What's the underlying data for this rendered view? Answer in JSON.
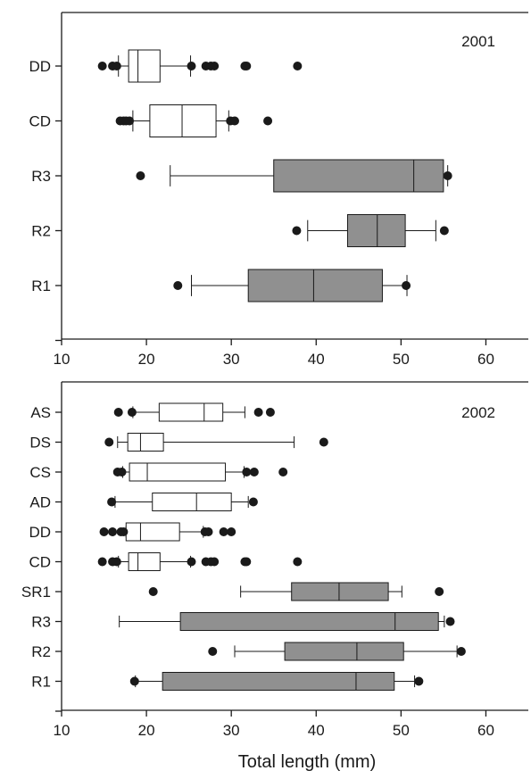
{
  "xlabel": "Total length (mm)",
  "colors": {
    "filled_box": "#909090",
    "open_box": "#ffffff",
    "stroke": "#1a1a1a"
  },
  "chart_data": [
    {
      "type": "boxplot",
      "orientation": "horizontal",
      "annotation": "2001",
      "xlim": [
        10,
        65
      ],
      "xticks": [
        "10",
        "20",
        "30",
        "40",
        "50",
        "60"
      ],
      "categories": [
        {
          "label": "DD",
          "filled": false,
          "whisker_low": 16.7,
          "q1": 17.9,
          "median": 19.0,
          "q3": 21.6,
          "whisker_high": 25.2,
          "outliers": [
            14.8,
            16.0,
            16.5,
            25.3,
            27.0,
            27.6,
            28.0,
            31.6,
            31.8,
            37.8
          ]
        },
        {
          "label": "CD",
          "filled": false,
          "whisker_low": 18.4,
          "q1": 20.4,
          "median": 24.2,
          "q3": 28.2,
          "whisker_high": 29.7,
          "outliers": [
            16.9,
            17.3,
            17.6,
            18.0,
            29.9,
            30.4,
            34.3
          ]
        },
        {
          "label": "R3",
          "filled": true,
          "whisker_low": 22.8,
          "q1": 35.0,
          "median": 51.5,
          "q3": 55.0,
          "whisker_high": 55.5,
          "outliers": [
            19.3,
            55.5
          ]
        },
        {
          "label": "R2",
          "filled": true,
          "whisker_low": 39.0,
          "q1": 43.7,
          "median": 47.2,
          "q3": 50.5,
          "whisker_high": 54.1,
          "outliers": [
            37.7,
            55.1
          ]
        },
        {
          "label": "R1",
          "filled": true,
          "whisker_low": 25.3,
          "q1": 32.0,
          "median": 39.7,
          "q3": 47.8,
          "whisker_high": 50.7,
          "outliers": [
            23.7,
            50.6
          ]
        }
      ]
    },
    {
      "type": "boxplot",
      "orientation": "horizontal",
      "annotation": "2002",
      "xlim": [
        10,
        65
      ],
      "xticks": [
        "10",
        "20",
        "30",
        "40",
        "50",
        "60"
      ],
      "categories": [
        {
          "label": "AS",
          "filled": false,
          "whisker_low": 18.4,
          "q1": 21.5,
          "median": 26.8,
          "q3": 29.0,
          "whisker_high": 31.6,
          "outliers": [
            16.7,
            18.3,
            33.2,
            34.6
          ]
        },
        {
          "label": "DS",
          "filled": false,
          "whisker_low": 16.6,
          "q1": 17.8,
          "median": 19.3,
          "q3": 22.0,
          "whisker_high": 37.4,
          "outliers": [
            15.6,
            40.9
          ]
        },
        {
          "label": "CS",
          "filled": false,
          "whisker_low": 17.2,
          "q1": 18.0,
          "median": 20.1,
          "q3": 29.3,
          "whisker_high": 31.5,
          "outliers": [
            16.6,
            17.1,
            31.8,
            32.7,
            36.1
          ]
        },
        {
          "label": "AD",
          "filled": false,
          "whisker_low": 16.3,
          "q1": 20.7,
          "median": 25.9,
          "q3": 30.0,
          "whisker_high": 32.0,
          "outliers": [
            15.9,
            32.6
          ]
        },
        {
          "label": "DD",
          "filled": false,
          "whisker_low": 17.6,
          "q1": 17.6,
          "median": 19.3,
          "q3": 23.9,
          "whisker_high": 26.7,
          "outliers": [
            15.0,
            16.0,
            17.0,
            17.3,
            26.9,
            27.3,
            29.1,
            30.0
          ]
        },
        {
          "label": "CD",
          "filled": false,
          "whisker_low": 16.7,
          "q1": 17.9,
          "median": 19.0,
          "q3": 21.6,
          "whisker_high": 25.2,
          "outliers": [
            14.8,
            16.0,
            16.5,
            25.3,
            27.0,
            27.6,
            28.0,
            31.6,
            31.8,
            37.8
          ]
        },
        {
          "label": "SR1",
          "filled": true,
          "whisker_low": 31.1,
          "q1": 37.1,
          "median": 42.7,
          "q3": 48.5,
          "whisker_high": 50.1,
          "outliers": [
            20.8,
            54.5
          ]
        },
        {
          "label": "R3",
          "filled": true,
          "whisker_low": 16.8,
          "q1": 24.0,
          "median": 49.3,
          "q3": 54.4,
          "whisker_high": 55.1,
          "outliers": [
            55.8
          ]
        },
        {
          "label": "R2",
          "filled": true,
          "whisker_low": 30.4,
          "q1": 36.3,
          "median": 44.8,
          "q3": 50.3,
          "whisker_high": 56.6,
          "outliers": [
            27.8,
            57.1
          ]
        },
        {
          "label": "R1",
          "filled": true,
          "whisker_low": 18.7,
          "q1": 21.9,
          "median": 44.7,
          "q3": 49.2,
          "whisker_high": 51.6,
          "outliers": [
            18.6,
            52.1
          ]
        }
      ]
    }
  ]
}
